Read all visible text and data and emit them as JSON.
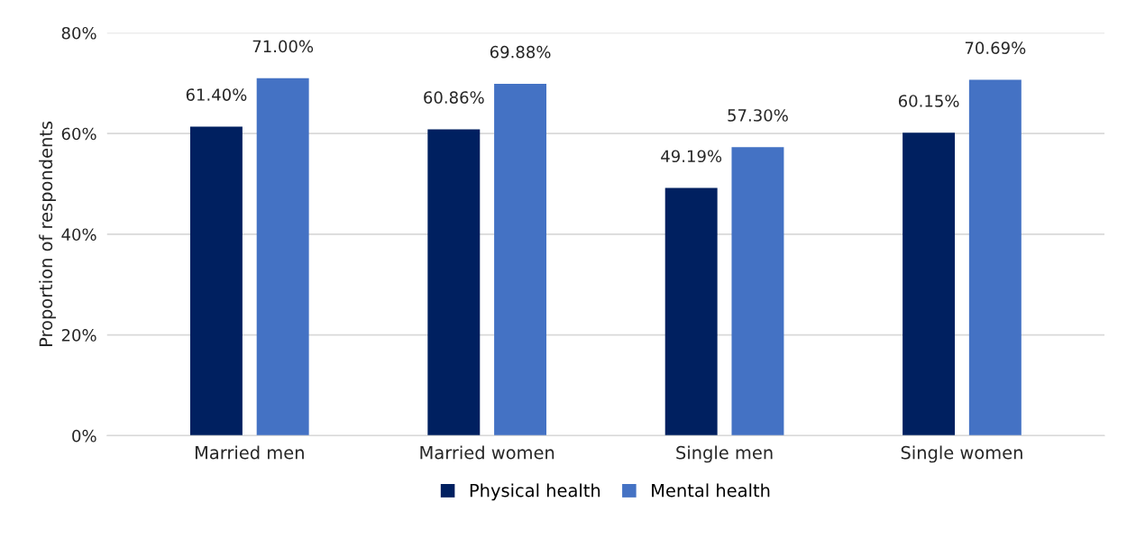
{
  "chart_data": {
    "type": "bar",
    "ylabel": "Proportion of respondents",
    "categories": [
      "Married men",
      "Married women",
      "Single men",
      "Single women"
    ],
    "series": [
      {
        "name": "Physical health",
        "color": "#002060",
        "values": [
          61.4,
          60.86,
          49.19,
          60.15
        ],
        "value_labels": [
          "61.40%",
          "60.86%",
          "49.19%",
          "60.15%"
        ]
      },
      {
        "name": "Mental health",
        "color": "#4472c4",
        "values": [
          71.0,
          69.88,
          57.3,
          70.69
        ],
        "value_labels": [
          "71.00%",
          "69.88%",
          "57.30%",
          "70.69%"
        ]
      }
    ],
    "ylim": [
      0,
      80
    ],
    "yticks": [
      {
        "value": 0,
        "label": "0%"
      },
      {
        "value": 20,
        "label": "20%"
      },
      {
        "value": 40,
        "label": "40%"
      },
      {
        "value": 60,
        "label": "60%"
      },
      {
        "value": 80,
        "label": "80%"
      }
    ],
    "grid": "y",
    "legend": "bottom"
  }
}
